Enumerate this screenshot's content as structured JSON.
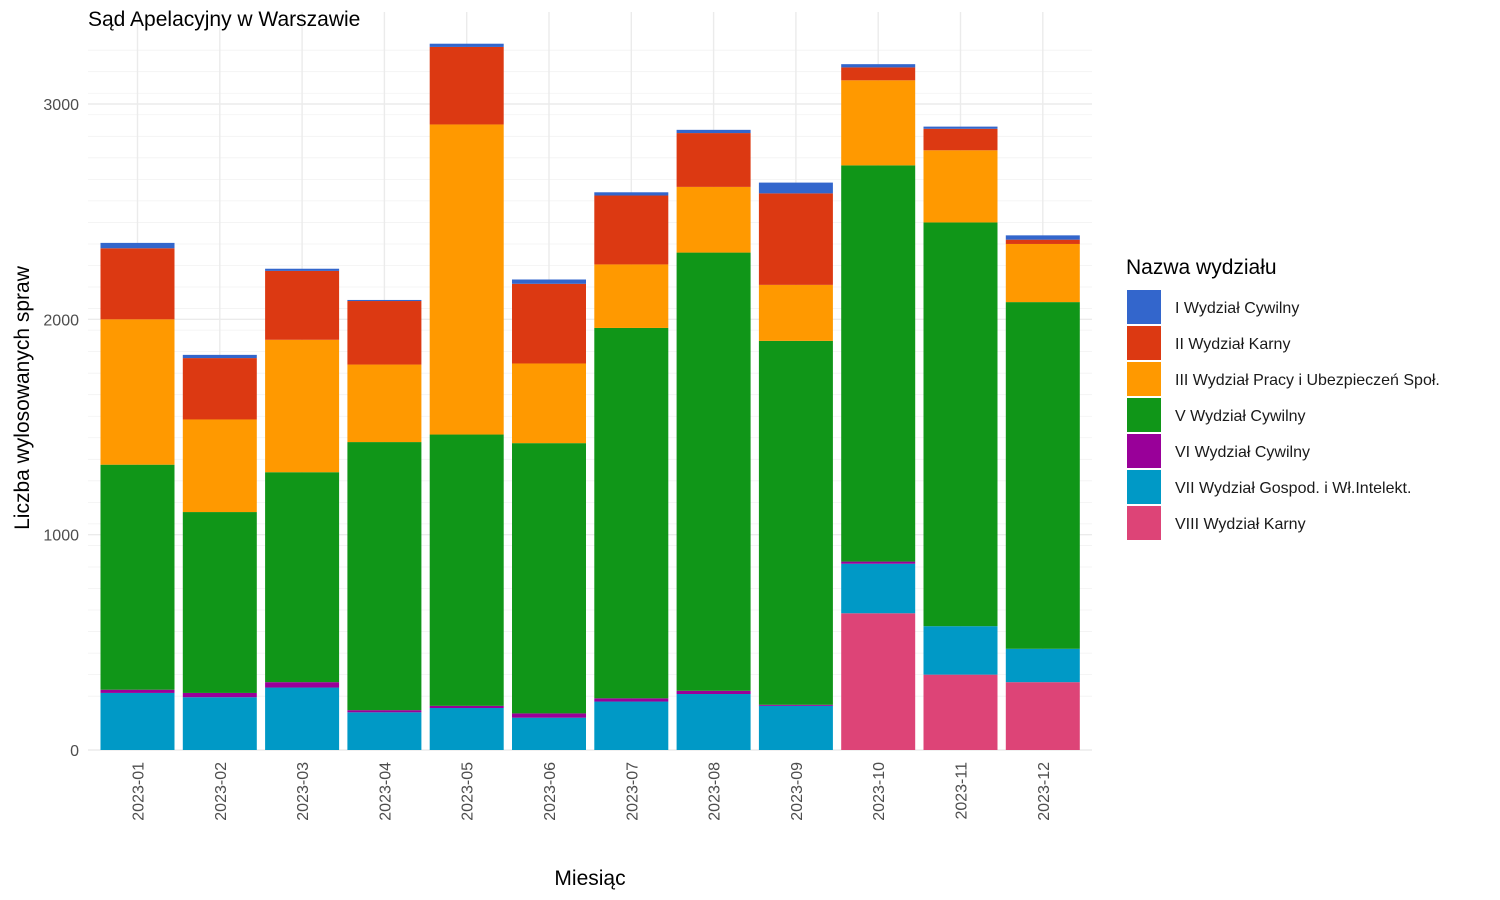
{
  "chart_data": {
    "type": "bar",
    "stacked": true,
    "title": "Sąd Apelacyjny w Warszawie",
    "xlabel": "Miesiąc",
    "ylabel": "Liczba wylosowanych spraw",
    "ylim": [
      0,
      3260
    ],
    "yticks": [
      "0",
      "1000",
      "2000",
      "3000"
    ],
    "grid": true,
    "legend_title": "Nazwa wydziału",
    "legend_position": "right",
    "categories": [
      "2023-01",
      "2023-02",
      "2023-03",
      "2023-04",
      "2023-05",
      "2023-06",
      "2023-07",
      "2023-08",
      "2023-09",
      "2023-10",
      "2023-11",
      "2023-12"
    ],
    "series": [
      {
        "name": "VIII Wydział Karny",
        "color": "#dd4477",
        "values": [
          0,
          0,
          0,
          0,
          0,
          0,
          0,
          0,
          0,
          635,
          350,
          315
        ]
      },
      {
        "name": "VII Wydział Gospod. i Wł.Intelekt.",
        "color": "#0099c6",
        "values": [
          265,
          245,
          290,
          175,
          195,
          150,
          225,
          260,
          205,
          230,
          225,
          155
        ]
      },
      {
        "name": "VI Wydział Cywilny",
        "color": "#990099",
        "values": [
          15,
          20,
          25,
          10,
          10,
          20,
          15,
          15,
          5,
          10,
          0,
          0
        ]
      },
      {
        "name": "V Wydział Cywilny",
        "color": "#109618",
        "values": [
          1045,
          840,
          975,
          1245,
          1260,
          1255,
          1720,
          2035,
          1690,
          1840,
          1875,
          1610
        ]
      },
      {
        "name": "III Wydział Pracy i Ubezpieczeń Społ.",
        "color": "#ff9900",
        "values": [
          675,
          430,
          615,
          360,
          1440,
          370,
          295,
          305,
          260,
          395,
          335,
          270
        ]
      },
      {
        "name": "II Wydział Karny",
        "color": "#dc3912",
        "values": [
          330,
          285,
          320,
          295,
          360,
          370,
          320,
          250,
          425,
          60,
          100,
          20
        ]
      },
      {
        "name": "I Wydział Cywilny",
        "color": "#3366cc",
        "values": [
          25,
          15,
          10,
          5,
          15,
          20,
          15,
          15,
          50,
          15,
          10,
          20
        ]
      }
    ]
  }
}
